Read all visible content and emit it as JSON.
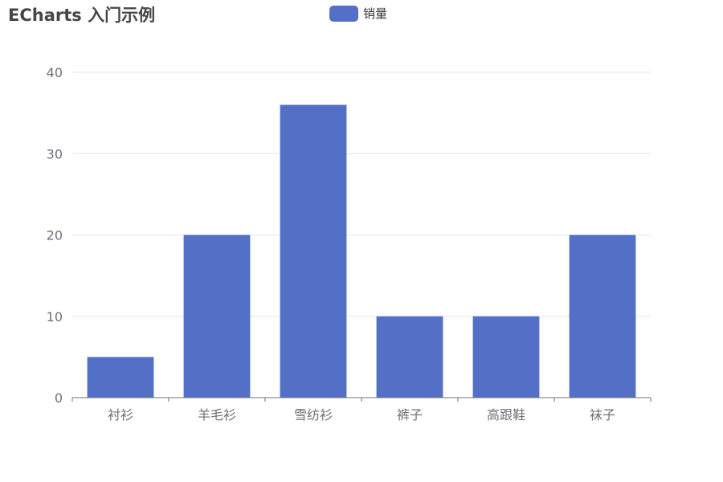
{
  "chart_data": {
    "type": "bar",
    "title": "ECharts 入门示例",
    "legend": [
      "销量"
    ],
    "legend_position": "top-center",
    "categories": [
      "衬衫",
      "羊毛衫",
      "雪纺衫",
      "裤子",
      "高跟鞋",
      "袜子"
    ],
    "series": [
      {
        "name": "销量",
        "values": [
          5,
          20,
          36,
          10,
          10,
          20
        ]
      }
    ],
    "ylim": [
      0,
      40
    ],
    "yticks": [
      "0",
      "10",
      "20",
      "30",
      "40"
    ],
    "grid": true,
    "colors": {
      "bar": "#5470c6",
      "grid": "#e0e6f1",
      "axis": "#6e7079",
      "label": "#6e7079"
    }
  }
}
